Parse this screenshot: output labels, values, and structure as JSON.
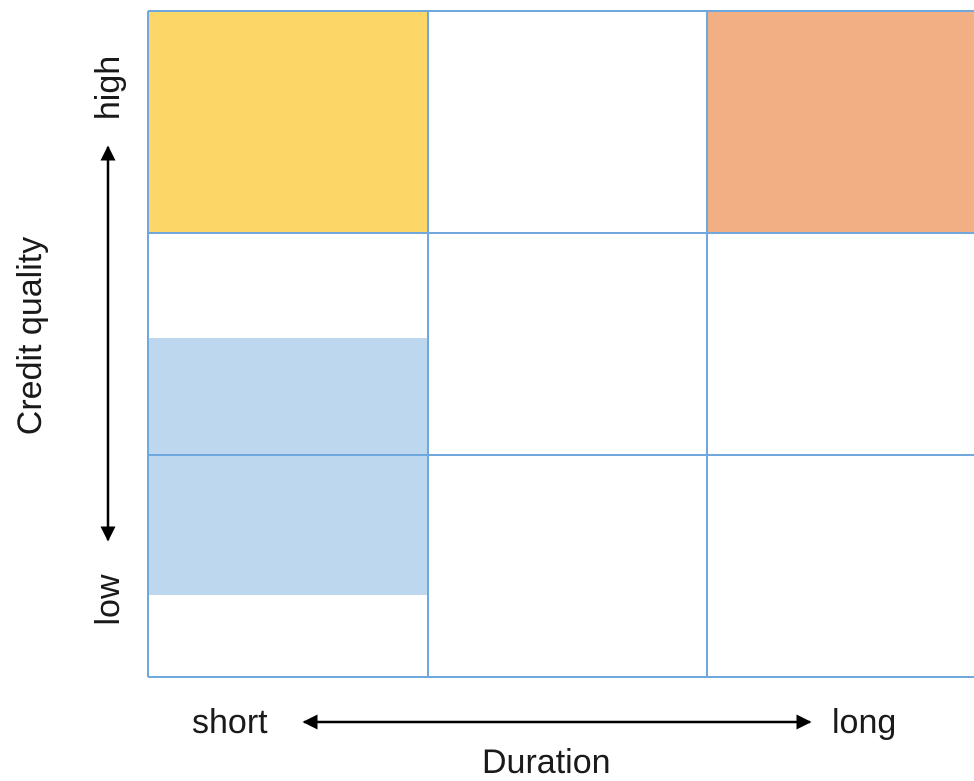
{
  "y_axis": {
    "title": "Credit quality",
    "high_label": "high",
    "low_label": "low"
  },
  "x_axis": {
    "title": "Duration",
    "short_label": "short",
    "long_label": "long"
  },
  "matrix": {
    "rows": 3,
    "columns": 3,
    "highlights": [
      {
        "name": "high-quality-short-duration",
        "color": "#FCD667"
      },
      {
        "name": "high-quality-long-duration",
        "color": "#F2AF84"
      },
      {
        "name": "low-to-mid-quality-short-duration",
        "color": "#BDD7EE"
      }
    ],
    "grid_color": "#6FA8DC"
  }
}
